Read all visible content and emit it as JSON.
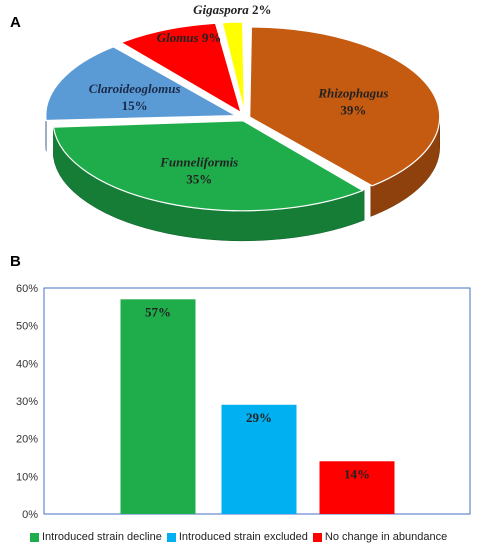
{
  "panels": {
    "a_label": "A",
    "b_label": "B"
  },
  "colors": {
    "rhizophagus": "#c55a11",
    "funneliformis": "#1fad4c",
    "claroideoglomus": "#5b9bd5",
    "glomus": "#ff0000",
    "gigaspora": "#ffff00",
    "decline": "#1fad4c",
    "excluded": "#00b0f0",
    "nochange": "#ff0000"
  },
  "chart_data": [
    {
      "type": "pie",
      "slices": [
        {
          "genus": "Rhizophagus",
          "value": 39,
          "pct_label": "39%",
          "color_key": "rhizophagus"
        },
        {
          "genus": "Funneliformis",
          "value": 35,
          "pct_label": "35%",
          "color_key": "funneliformis"
        },
        {
          "genus": "Claroideoglomus",
          "value": 15,
          "pct_label": "15%",
          "color_key": "claroideoglomus"
        },
        {
          "genus": "Glomus",
          "value": 9,
          "pct_label": "9%",
          "color_key": "glomus"
        },
        {
          "genus": "Gigaspora",
          "value": 2,
          "pct_label": "2%",
          "color_key": "gigaspora"
        }
      ],
      "style": "3d-exploded"
    },
    {
      "type": "bar",
      "categories": [
        "Introduced strain decline",
        "Introduced strain excluded",
        "No change in abundance"
      ],
      "values": [
        57,
        29,
        14
      ],
      "data_labels": [
        "57%",
        "29%",
        "14%"
      ],
      "color_keys": [
        "decline",
        "excluded",
        "nochange"
      ],
      "ylim": [
        0,
        60
      ],
      "yticks": [
        "0%",
        "10%",
        "20%",
        "30%",
        "40%",
        "50%",
        "60%"
      ],
      "legend_position": "bottom",
      "grid": false
    }
  ]
}
